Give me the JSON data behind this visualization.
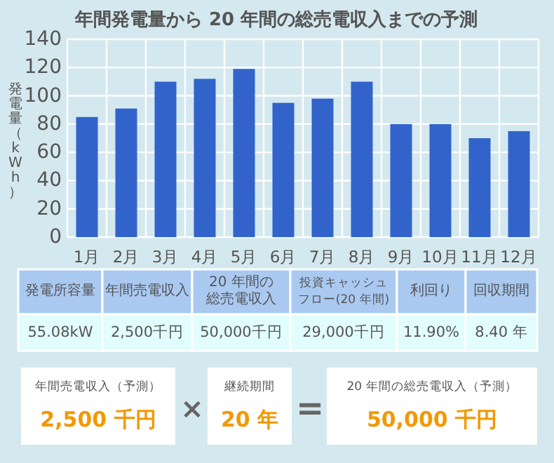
{
  "chart_data": {
    "type": "bar",
    "title": "年間発電量から 20 年間の総売電収入までの予測",
    "ylabel": "発電量（kWh）",
    "categories": [
      "1月",
      "2月",
      "3月",
      "4月",
      "5月",
      "6月",
      "7月",
      "8月",
      "9月",
      "10月",
      "11月",
      "12月"
    ],
    "values": [
      85,
      91,
      110,
      112,
      119,
      95,
      98,
      110,
      80,
      80,
      70,
      75
    ],
    "color": "#3163cb",
    "ylim": [
      0,
      140
    ],
    "yticks": [
      0,
      20,
      40,
      60,
      80,
      100,
      120,
      140
    ],
    "grid": true,
    "annotations": [
      "発電所容量",
      "年間売電収入",
      "20 年間の総売電収入",
      "投資キャッシュフロー(20 年間)",
      "利回り",
      "回収期間",
      "55.08kW",
      "2,500千円",
      "50,000千円",
      "29,000千円",
      "11.90%",
      "8.40 年",
      "年間売電収入（予測）",
      "継続期間",
      "20 年間の総売電収入（予測）",
      "2,500 千円",
      "20 年",
      "50,000 千円",
      "×",
      "="
    ]
  }
}
